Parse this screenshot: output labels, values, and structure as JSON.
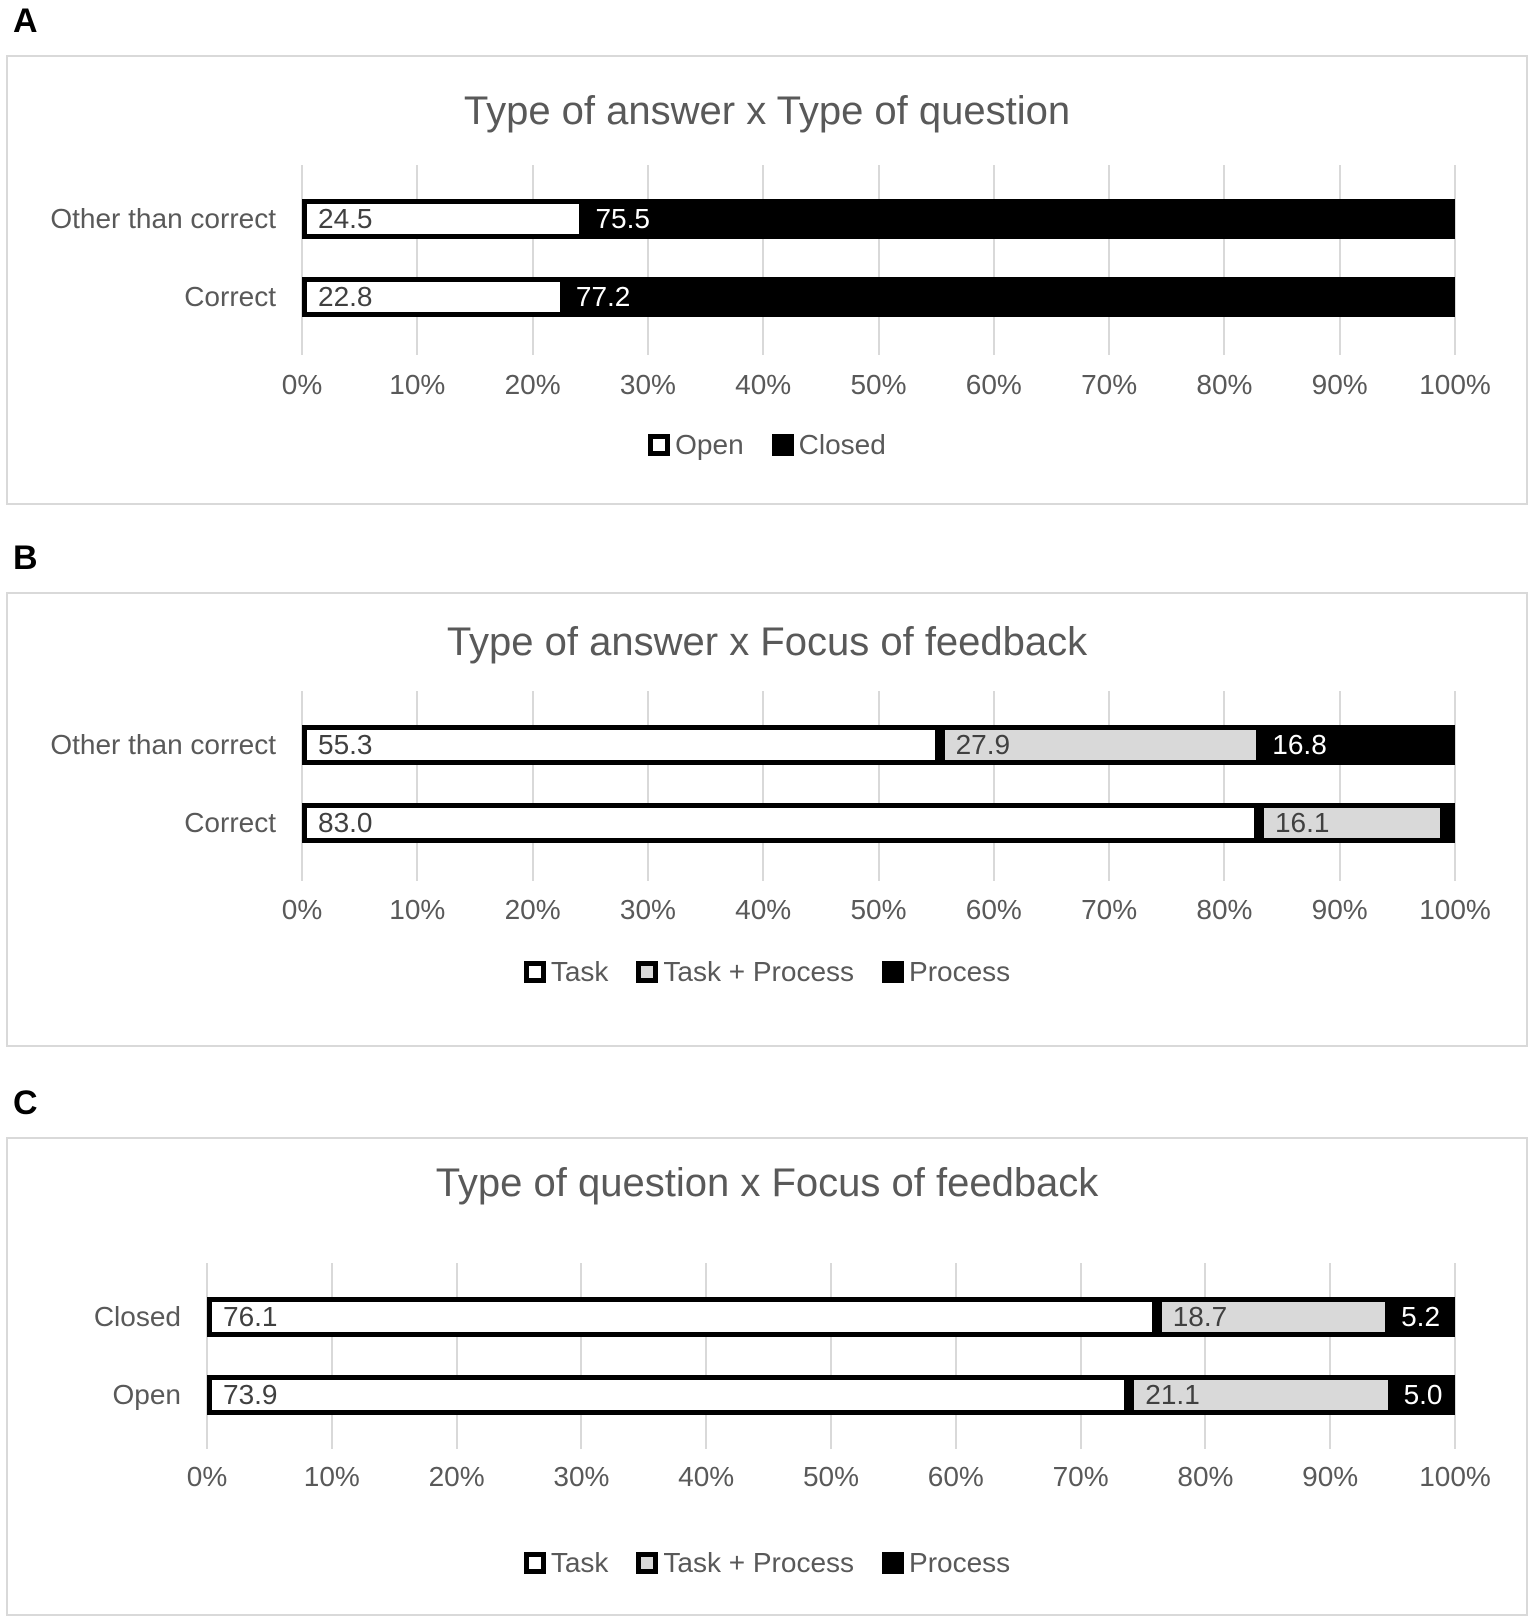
{
  "panel_labels": [
    "A",
    "B",
    "C"
  ],
  "colors": {
    "segment_white": "#ffffff",
    "segment_gray": "#d9d9d9",
    "segment_black": "#000000",
    "segment_border": "#000000",
    "title_text": "#595959",
    "axis_text": "#595959",
    "data_label_dark": "#404040",
    "data_label_light": "#ffffff",
    "gridline": "#d9d9d9",
    "panel_border": "#d9d9d9"
  },
  "chart_data": [
    {
      "type": "bar",
      "orientation": "horizontal",
      "stacked": true,
      "grid": true,
      "legend_position": "bottom",
      "title": "Type of answer x Type of question",
      "categories": [
        "Other than correct",
        "Correct"
      ],
      "series": [
        {
          "name": "Open",
          "fill": "white",
          "values": [
            24.5,
            22.8
          ],
          "labels": [
            "24.5",
            "22.8"
          ]
        },
        {
          "name": "Closed",
          "fill": "black",
          "values": [
            75.5,
            77.2
          ],
          "labels": [
            "75.5",
            "77.2"
          ]
        }
      ],
      "xlim": [
        0,
        100
      ],
      "tick_labels": [
        "0%",
        "10%",
        "20%",
        "30%",
        "40%",
        "50%",
        "60%",
        "70%",
        "80%",
        "90%",
        "100%"
      ]
    },
    {
      "type": "bar",
      "orientation": "horizontal",
      "stacked": true,
      "grid": true,
      "legend_position": "bottom",
      "title": "Type of answer x Focus of feedback",
      "categories": [
        "Other than correct",
        "Correct"
      ],
      "series": [
        {
          "name": "Task",
          "fill": "white",
          "values": [
            55.3,
            83.0
          ],
          "labels": [
            "55.3",
            "83.0"
          ]
        },
        {
          "name": "Task + Process",
          "fill": "gray",
          "values": [
            27.9,
            16.1
          ],
          "labels": [
            "27.9",
            "16.1"
          ]
        },
        {
          "name": "Process",
          "fill": "black",
          "values": [
            16.8,
            0.9
          ],
          "labels": [
            "16.8",
            ""
          ]
        }
      ],
      "xlim": [
        0,
        100
      ],
      "tick_labels": [
        "0%",
        "10%",
        "20%",
        "30%",
        "40%",
        "50%",
        "60%",
        "70%",
        "80%",
        "90%",
        "100%"
      ]
    },
    {
      "type": "bar",
      "orientation": "horizontal",
      "stacked": true,
      "grid": true,
      "legend_position": "bottom",
      "title": "Type of question x Focus of feedback",
      "categories": [
        "Closed",
        "Open"
      ],
      "series": [
        {
          "name": "Task",
          "fill": "white",
          "values": [
            76.1,
            73.9
          ],
          "labels": [
            "76.1",
            "73.9"
          ]
        },
        {
          "name": "Task + Process",
          "fill": "gray",
          "values": [
            18.7,
            21.1
          ],
          "labels": [
            "18.7",
            "21.1"
          ]
        },
        {
          "name": "Process",
          "fill": "black",
          "values": [
            5.2,
            5.0
          ],
          "labels": [
            "5.2",
            "5.0"
          ]
        }
      ],
      "xlim": [
        0,
        100
      ],
      "tick_labels": [
        "0%",
        "10%",
        "20%",
        "30%",
        "40%",
        "50%",
        "60%",
        "70%",
        "80%",
        "90%",
        "100%"
      ]
    }
  ]
}
